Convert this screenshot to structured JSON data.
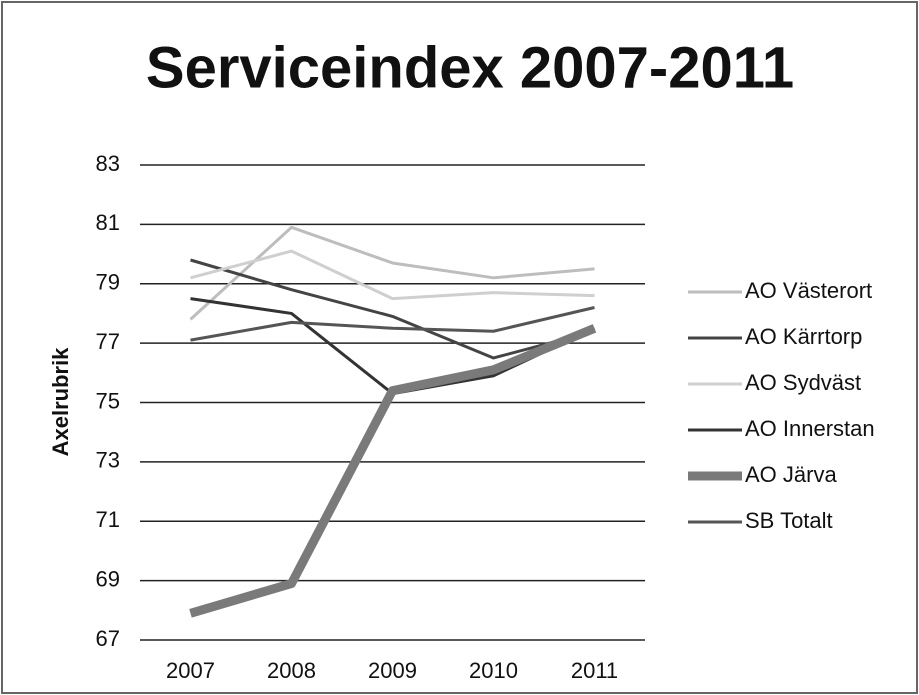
{
  "chart_data": {
    "type": "line",
    "title": "Serviceindex 2007-2011",
    "y_label": "Axelrubrik",
    "categories": [
      "2007",
      "2008",
      "2009",
      "2010",
      "2011"
    ],
    "series": [
      {
        "name": "AO Västerort",
        "color": "#bdbdbd",
        "width": 3,
        "values": [
          77.8,
          80.9,
          79.7,
          79.2,
          79.5
        ]
      },
      {
        "name": "AO Kärrtorp",
        "color": "#444444",
        "width": 3,
        "values": [
          79.8,
          78.8,
          77.9,
          76.5,
          77.4
        ]
      },
      {
        "name": "AO Sydväst",
        "color": "#cfcfcf",
        "width": 3,
        "values": [
          79.2,
          80.1,
          78.5,
          78.7,
          78.6
        ]
      },
      {
        "name": "AO Innerstan",
        "color": "#333333",
        "width": 3,
        "values": [
          78.5,
          78.0,
          75.3,
          75.9,
          77.5
        ]
      },
      {
        "name": "AO Järva",
        "color": "#7a7a7a",
        "width": 9,
        "values": [
          67.9,
          68.9,
          75.4,
          76.1,
          77.5
        ]
      },
      {
        "name": "SB Totalt",
        "color": "#555555",
        "width": 3,
        "values": [
          77.1,
          77.7,
          77.5,
          77.4,
          78.2
        ]
      }
    ],
    "ylim": [
      67,
      83
    ],
    "yticks": [
      67,
      69,
      71,
      73,
      75,
      77,
      79,
      81,
      83
    ],
    "grid": true,
    "legend": "right"
  }
}
